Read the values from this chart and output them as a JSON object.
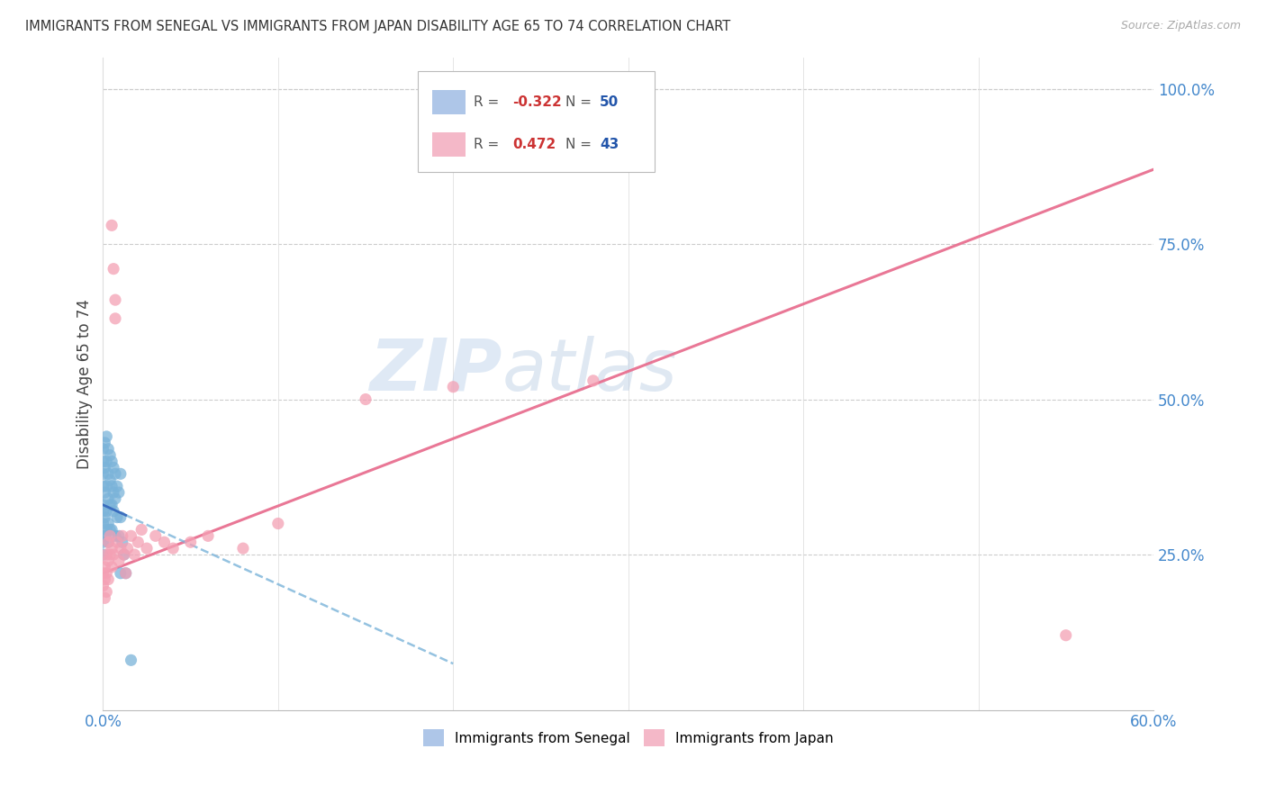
{
  "title": "IMMIGRANTS FROM SENEGAL VS IMMIGRANTS FROM JAPAN DISABILITY AGE 65 TO 74 CORRELATION CHART",
  "source": "Source: ZipAtlas.com",
  "ylabel": "Disability Age 65 to 74",
  "right_yticks": [
    "100.0%",
    "75.0%",
    "50.0%",
    "25.0%"
  ],
  "right_ytick_vals": [
    1.0,
    0.75,
    0.5,
    0.25
  ],
  "watermark_zip": "ZIP",
  "watermark_atlas": "atlas",
  "senegal_color": "#7ab3d9",
  "japan_color": "#f4a0b4",
  "senegal_legend_color": "#aec6e8",
  "japan_legend_color": "#f4b8c8",
  "xlim": [
    0.0,
    0.6
  ],
  "ylim": [
    0.0,
    1.05
  ],
  "senegal_r": "-0.322",
  "senegal_n": "50",
  "japan_r": "0.472",
  "japan_n": "43",
  "senegal_x": [
    0.0,
    0.0,
    0.0,
    0.0,
    0.0,
    0.0,
    0.0,
    0.0,
    0.0,
    0.0,
    0.001,
    0.001,
    0.001,
    0.001,
    0.001,
    0.002,
    0.002,
    0.002,
    0.002,
    0.002,
    0.003,
    0.003,
    0.003,
    0.003,
    0.003,
    0.004,
    0.004,
    0.004,
    0.004,
    0.005,
    0.005,
    0.005,
    0.005,
    0.006,
    0.006,
    0.006,
    0.007,
    0.007,
    0.007,
    0.008,
    0.008,
    0.009,
    0.009,
    0.01,
    0.01,
    0.01,
    0.011,
    0.012,
    0.013,
    0.016
  ],
  "senegal_y": [
    0.42,
    0.4,
    0.38,
    0.36,
    0.33,
    0.32,
    0.3,
    0.28,
    0.27,
    0.25,
    0.43,
    0.39,
    0.35,
    0.31,
    0.28,
    0.44,
    0.4,
    0.36,
    0.32,
    0.29,
    0.42,
    0.38,
    0.34,
    0.3,
    0.27,
    0.41,
    0.37,
    0.33,
    0.29,
    0.4,
    0.36,
    0.33,
    0.29,
    0.39,
    0.35,
    0.32,
    0.38,
    0.34,
    0.28,
    0.36,
    0.31,
    0.35,
    0.28,
    0.38,
    0.31,
    0.22,
    0.27,
    0.25,
    0.22,
    0.08
  ],
  "japan_x": [
    0.0,
    0.0,
    0.001,
    0.001,
    0.001,
    0.002,
    0.002,
    0.002,
    0.003,
    0.003,
    0.003,
    0.004,
    0.004,
    0.005,
    0.005,
    0.005,
    0.006,
    0.006,
    0.007,
    0.007,
    0.008,
    0.009,
    0.01,
    0.011,
    0.012,
    0.013,
    0.014,
    0.016,
    0.018,
    0.02,
    0.022,
    0.025,
    0.03,
    0.035,
    0.04,
    0.05,
    0.06,
    0.08,
    0.1,
    0.15,
    0.2,
    0.28,
    0.55
  ],
  "japan_y": [
    0.22,
    0.2,
    0.23,
    0.21,
    0.18,
    0.25,
    0.22,
    0.19,
    0.27,
    0.24,
    0.21,
    0.28,
    0.25,
    0.78,
    0.26,
    0.23,
    0.71,
    0.25,
    0.66,
    0.63,
    0.27,
    0.24,
    0.26,
    0.28,
    0.25,
    0.22,
    0.26,
    0.28,
    0.25,
    0.27,
    0.29,
    0.26,
    0.28,
    0.27,
    0.26,
    0.27,
    0.28,
    0.26,
    0.3,
    0.5,
    0.52,
    0.53,
    0.12
  ]
}
